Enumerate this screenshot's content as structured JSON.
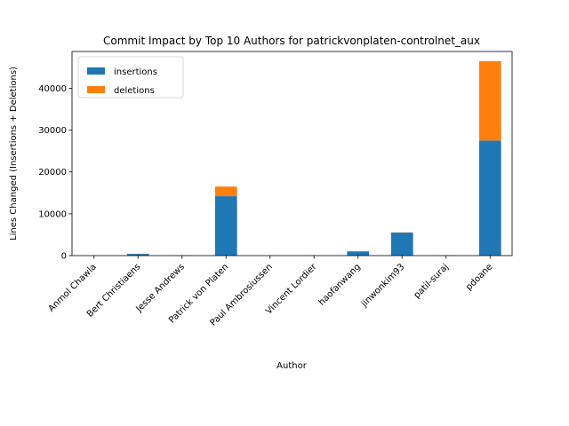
{
  "chart_data": {
    "type": "bar",
    "stacked": true,
    "title": "Commit Impact by Top 10 Authors for patrickvonplaten-controlnet_aux",
    "xlabel": "Author",
    "ylabel": "Lines Changed (Insertions + Deletions)",
    "categories": [
      "Anmol Chawla",
      "Bert Christiaens",
      "Jesse Andrews",
      "Patrick von Platen",
      "Paul Ambrosiussen",
      "Vincent Lordier",
      "haofanwang",
      "jinwonkim93",
      "patil-suraj",
      "pdoane"
    ],
    "series": [
      {
        "name": "insertions",
        "values": [
          10,
          400,
          30,
          14200,
          20,
          20,
          1000,
          5500,
          30,
          27500
        ],
        "color": "#1f77b4"
      },
      {
        "name": "deletions",
        "values": [
          5,
          50,
          10,
          2300,
          5,
          5,
          50,
          50,
          10,
          19000
        ],
        "color": "#ff7f0e"
      }
    ],
    "ylim": [
      0,
      48800
    ],
    "yticks": [
      0,
      10000,
      20000,
      30000,
      40000
    ],
    "ytick_labels": [
      "0",
      "10000",
      "20000",
      "30000",
      "40000"
    ],
    "legend": "top-left",
    "grid": false
  }
}
